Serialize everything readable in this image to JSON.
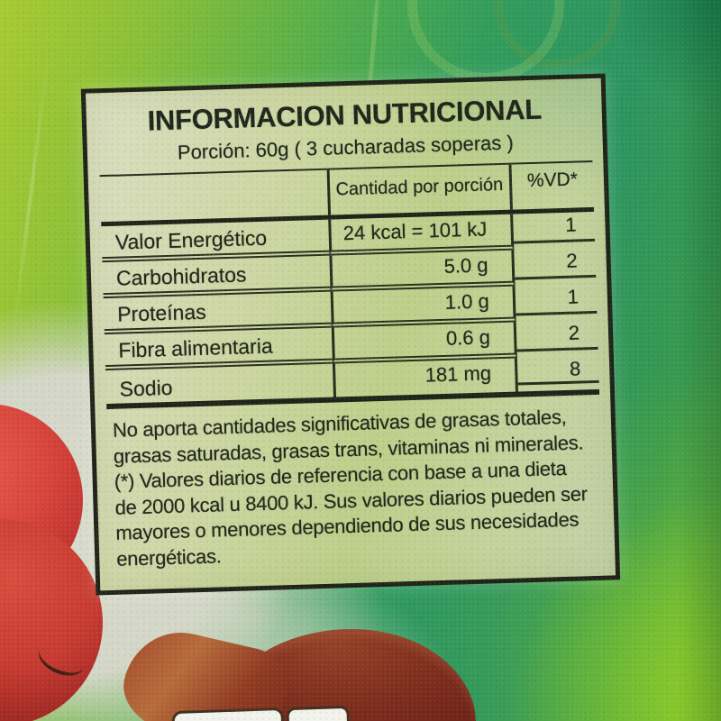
{
  "nutrition_label": {
    "title": "INFORMACION NUTRICIONAL",
    "portion_line": "Porción: 60g ( 3 cucharadas soperas )",
    "table": {
      "amount_header": "Cantidad por porción",
      "vd_header": "%VD*",
      "rows": [
        {
          "name": "Valor Energético",
          "amount": "24 kcal = 101 kJ",
          "vd": "1"
        },
        {
          "name": "Carbohidratos",
          "amount": "5.0 g",
          "vd": "2"
        },
        {
          "name": "Proteínas",
          "amount": "1.0 g",
          "vd": "1"
        },
        {
          "name": "Fibra alimentaria",
          "amount": "0.6 g",
          "vd": "2"
        },
        {
          "name": "Sodio",
          "amount": "181 mg",
          "vd": "8"
        }
      ]
    },
    "footnote_lines": [
      "No aporta cantidades significativas de grasas totales,",
      "grasas saturadas, grasas trans, vitaminas ni minerales.",
      "(*) Valores diarios de referencia con base a una dieta",
      "de 2000 kcal u 8400 kJ. Sus valores diarios pueden ser",
      "mayores o menores dependiendo de sus necesidades",
      "energéticas."
    ]
  },
  "colors": {
    "background_lime": "#a7ca32",
    "background_green": "#2f9a5e",
    "background_teal_corner": "#1f7e55",
    "background_bright_lime": "#7fc32a",
    "label_fill": "#cdd6a2",
    "label_pale": "#d9ddbe",
    "ink": "#20261a",
    "tomato_red": "#c63a30",
    "tomato_brown": "#8f3a22",
    "tag_white": "#f2f3ec"
  }
}
